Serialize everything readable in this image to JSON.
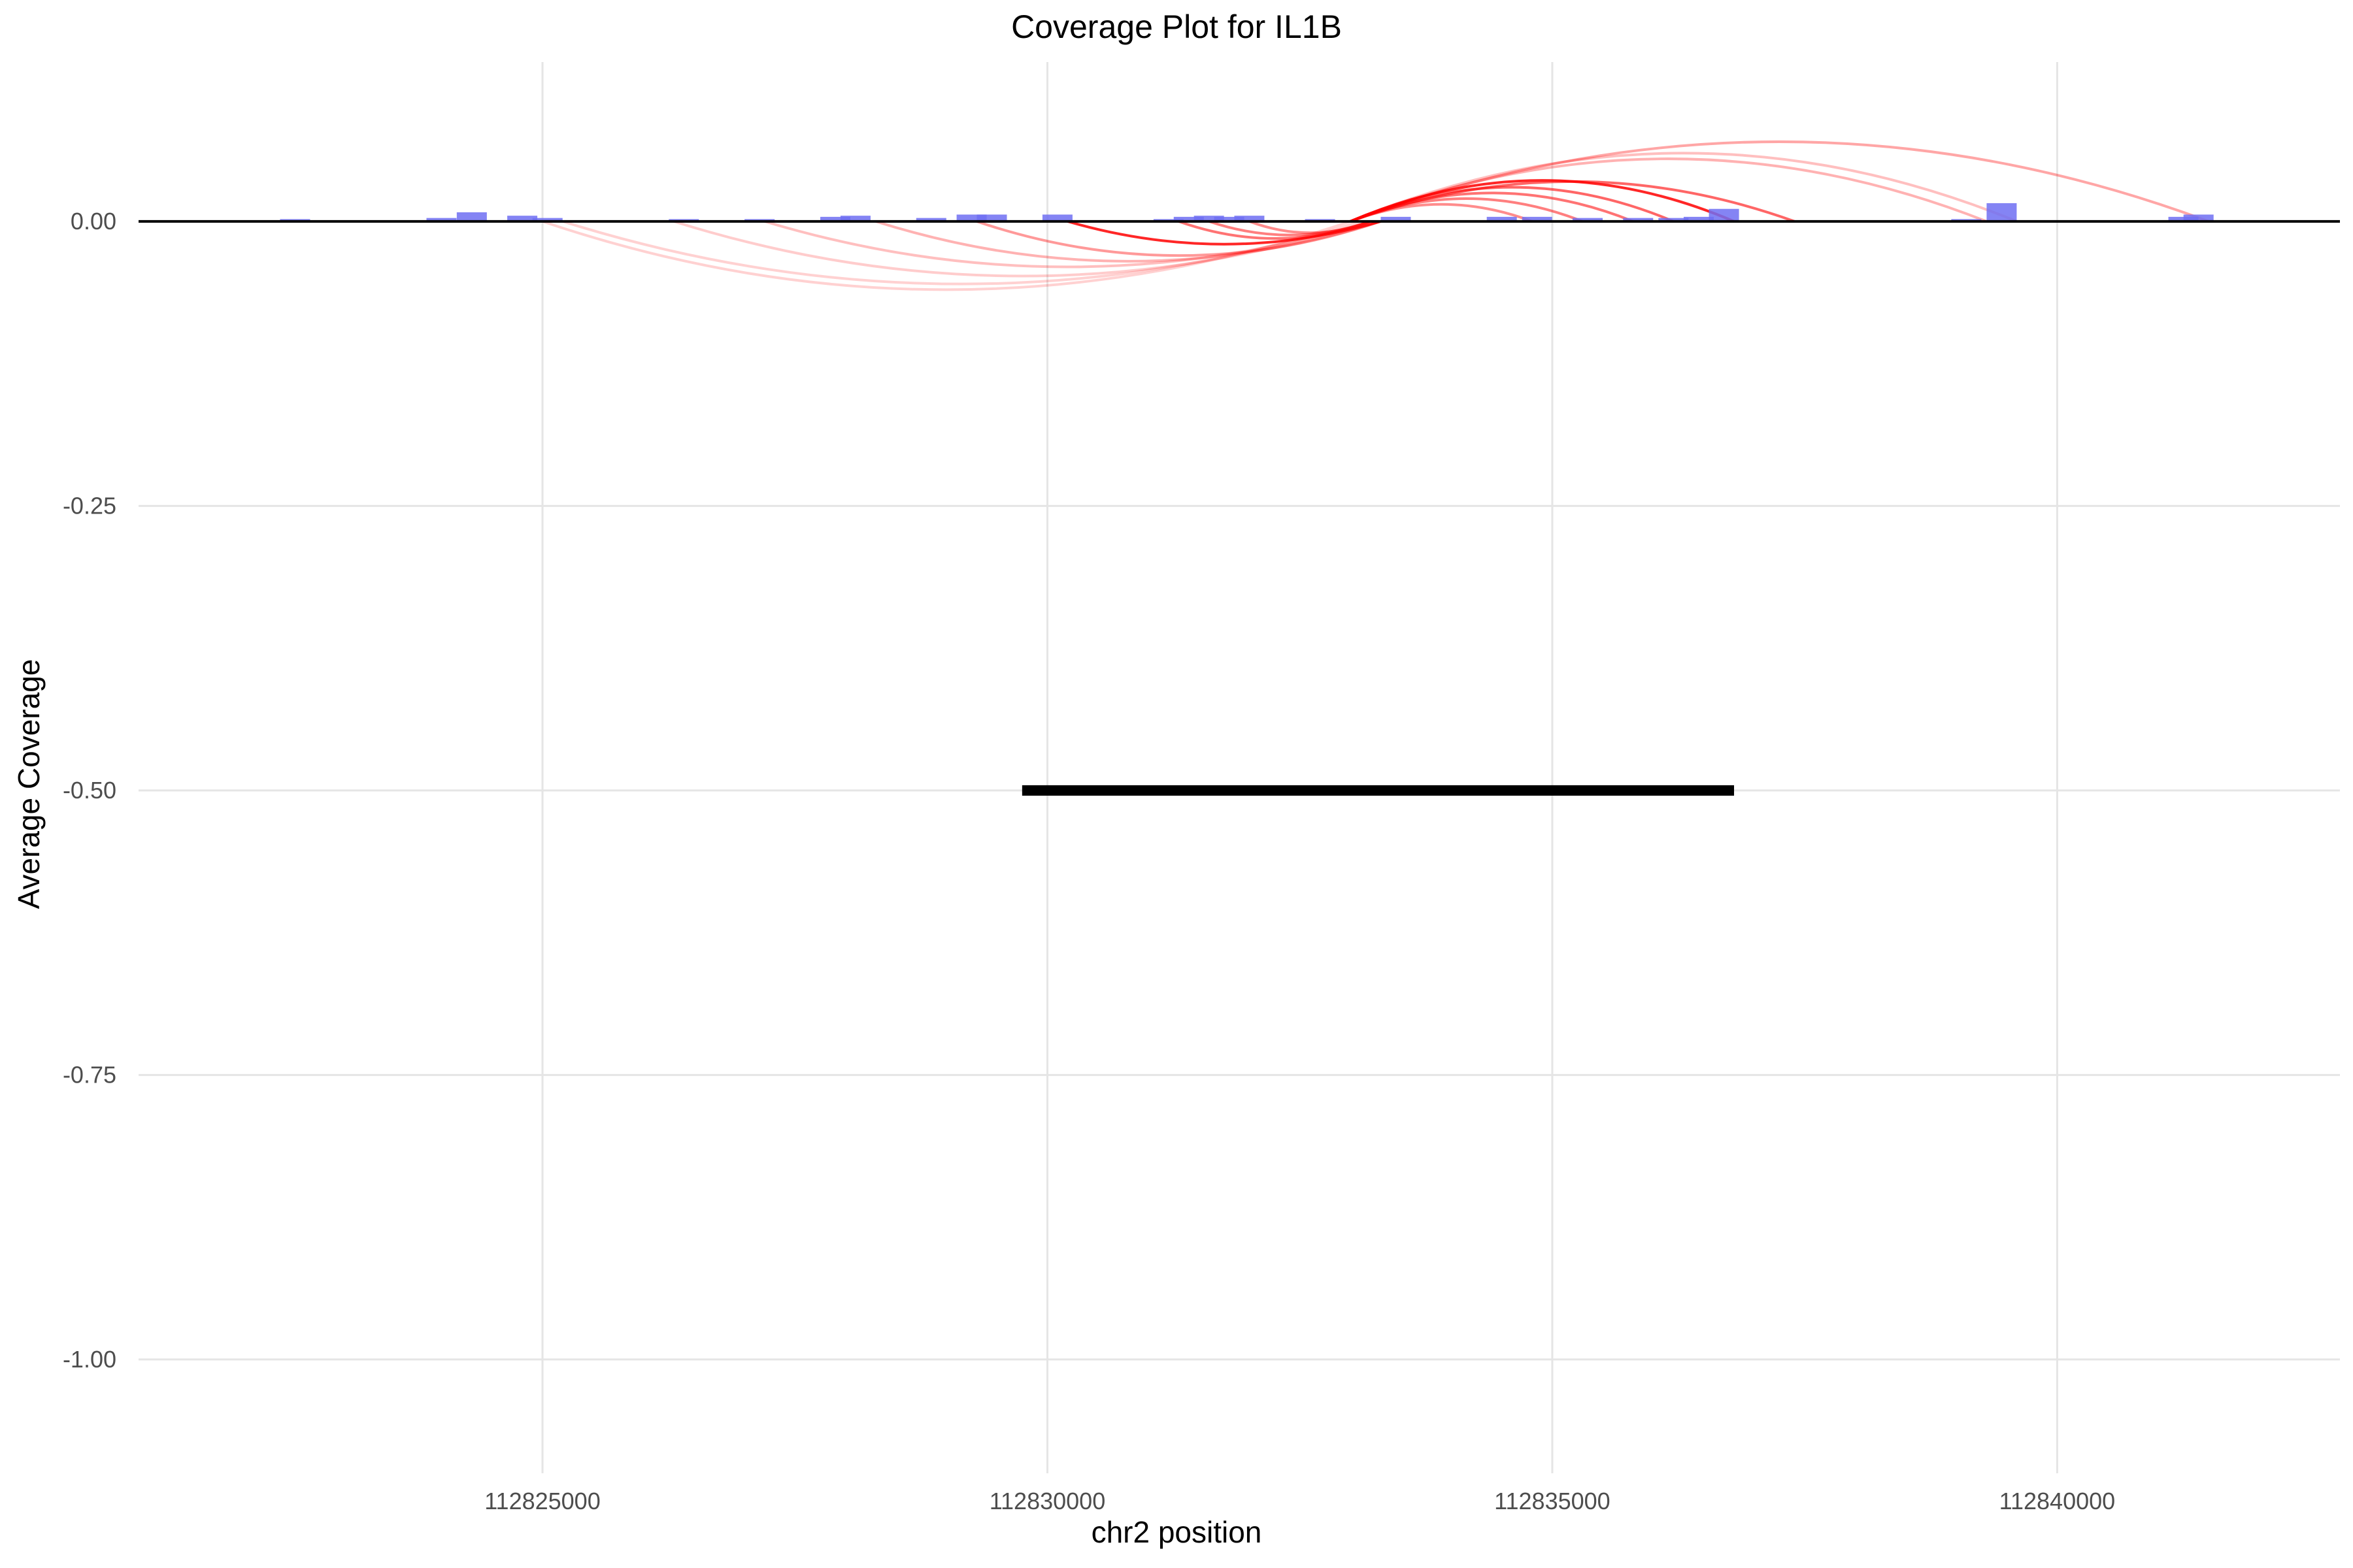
{
  "chart_data": {
    "type": "bar",
    "title": "Coverage Plot for IL1B",
    "xlabel": "chr2 position",
    "ylabel": "Average Coverage",
    "xlim": [
      112821000,
      112842800
    ],
    "ylim": [
      -1.1,
      0.14
    ],
    "grid": true,
    "legend": "none",
    "x_ticks": [
      112825000,
      112830000,
      112835000,
      112840000
    ],
    "x_tick_labels": [
      "112825000",
      "112830000",
      "112835000",
      "112840000"
    ],
    "y_ticks": [
      0.0,
      -0.25,
      -0.5,
      -0.75,
      -1.0
    ],
    "y_tick_labels": [
      "0.00",
      "-0.25",
      "-0.50",
      "-0.75",
      "-1.00"
    ],
    "colors": {
      "coverage": "#6f6ff2",
      "junction": "#ff0000",
      "gene": "#000000",
      "grid": "#e5e5e5"
    },
    "coverage_bars": [
      {
        "x": 112822550,
        "y": 0.002
      },
      {
        "x": 112824000,
        "y": 0.003
      },
      {
        "x": 112824300,
        "y": 0.008
      },
      {
        "x": 112824800,
        "y": 0.005
      },
      {
        "x": 112825050,
        "y": 0.003
      },
      {
        "x": 112826400,
        "y": 0.002
      },
      {
        "x": 112827150,
        "y": 0.002
      },
      {
        "x": 112827900,
        "y": 0.004
      },
      {
        "x": 112828100,
        "y": 0.005
      },
      {
        "x": 112828850,
        "y": 0.003
      },
      {
        "x": 112829250,
        "y": 0.006
      },
      {
        "x": 112829450,
        "y": 0.006
      },
      {
        "x": 112830100,
        "y": 0.006
      },
      {
        "x": 112831200,
        "y": 0.002
      },
      {
        "x": 112831400,
        "y": 0.004
      },
      {
        "x": 112831600,
        "y": 0.005
      },
      {
        "x": 112831800,
        "y": 0.004
      },
      {
        "x": 112832000,
        "y": 0.005
      },
      {
        "x": 112832700,
        "y": 0.002
      },
      {
        "x": 112833450,
        "y": 0.004
      },
      {
        "x": 112834500,
        "y": 0.004
      },
      {
        "x": 112834850,
        "y": 0.004
      },
      {
        "x": 112835350,
        "y": 0.003
      },
      {
        "x": 112835850,
        "y": 0.003
      },
      {
        "x": 112836200,
        "y": 0.003
      },
      {
        "x": 112836450,
        "y": 0.004
      },
      {
        "x": 112836700,
        "y": 0.011
      },
      {
        "x": 112839100,
        "y": 0.002
      },
      {
        "x": 112839450,
        "y": 0.016
      },
      {
        "x": 112841250,
        "y": 0.004
      },
      {
        "x": 112841400,
        "y": 0.006
      }
    ],
    "junctions": [
      {
        "start": 112825000,
        "end": 112833000,
        "height": -0.06,
        "opacity": 0.18
      },
      {
        "start": 112825200,
        "end": 112833100,
        "height": -0.055,
        "opacity": 0.18
      },
      {
        "start": 112826300,
        "end": 112833200,
        "height": -0.048,
        "opacity": 0.2
      },
      {
        "start": 112827200,
        "end": 112833200,
        "height": -0.04,
        "opacity": 0.25
      },
      {
        "start": 112828300,
        "end": 112833300,
        "height": -0.035,
        "opacity": 0.3
      },
      {
        "start": 112829300,
        "end": 112833300,
        "height": -0.03,
        "opacity": 0.4
      },
      {
        "start": 112830200,
        "end": 112833300,
        "height": -0.02,
        "opacity": 0.85
      },
      {
        "start": 112831300,
        "end": 112833200,
        "height": -0.015,
        "opacity": 0.55
      },
      {
        "start": 112831600,
        "end": 112833200,
        "height": -0.012,
        "opacity": 0.5
      },
      {
        "start": 112832000,
        "end": 112833200,
        "height": -0.01,
        "opacity": 0.45
      },
      {
        "start": 112833000,
        "end": 112837400,
        "height": 0.035,
        "opacity": 0.6
      },
      {
        "start": 112833000,
        "end": 112836800,
        "height": 0.036,
        "opacity": 0.85
      },
      {
        "start": 112833000,
        "end": 112836200,
        "height": 0.03,
        "opacity": 0.6
      },
      {
        "start": 112833000,
        "end": 112835800,
        "height": 0.025,
        "opacity": 0.55
      },
      {
        "start": 112833000,
        "end": 112835300,
        "height": 0.02,
        "opacity": 0.5
      },
      {
        "start": 112833000,
        "end": 112834800,
        "height": 0.015,
        "opacity": 0.45
      },
      {
        "start": 112833000,
        "end": 112839300,
        "height": 0.055,
        "opacity": 0.3
      },
      {
        "start": 112833000,
        "end": 112839600,
        "height": 0.06,
        "opacity": 0.25
      },
      {
        "start": 112833000,
        "end": 112841500,
        "height": 0.07,
        "opacity": 0.35
      }
    ],
    "gene_segment": {
      "start": 112829750,
      "end": 112836800,
      "y": -0.5
    }
  }
}
